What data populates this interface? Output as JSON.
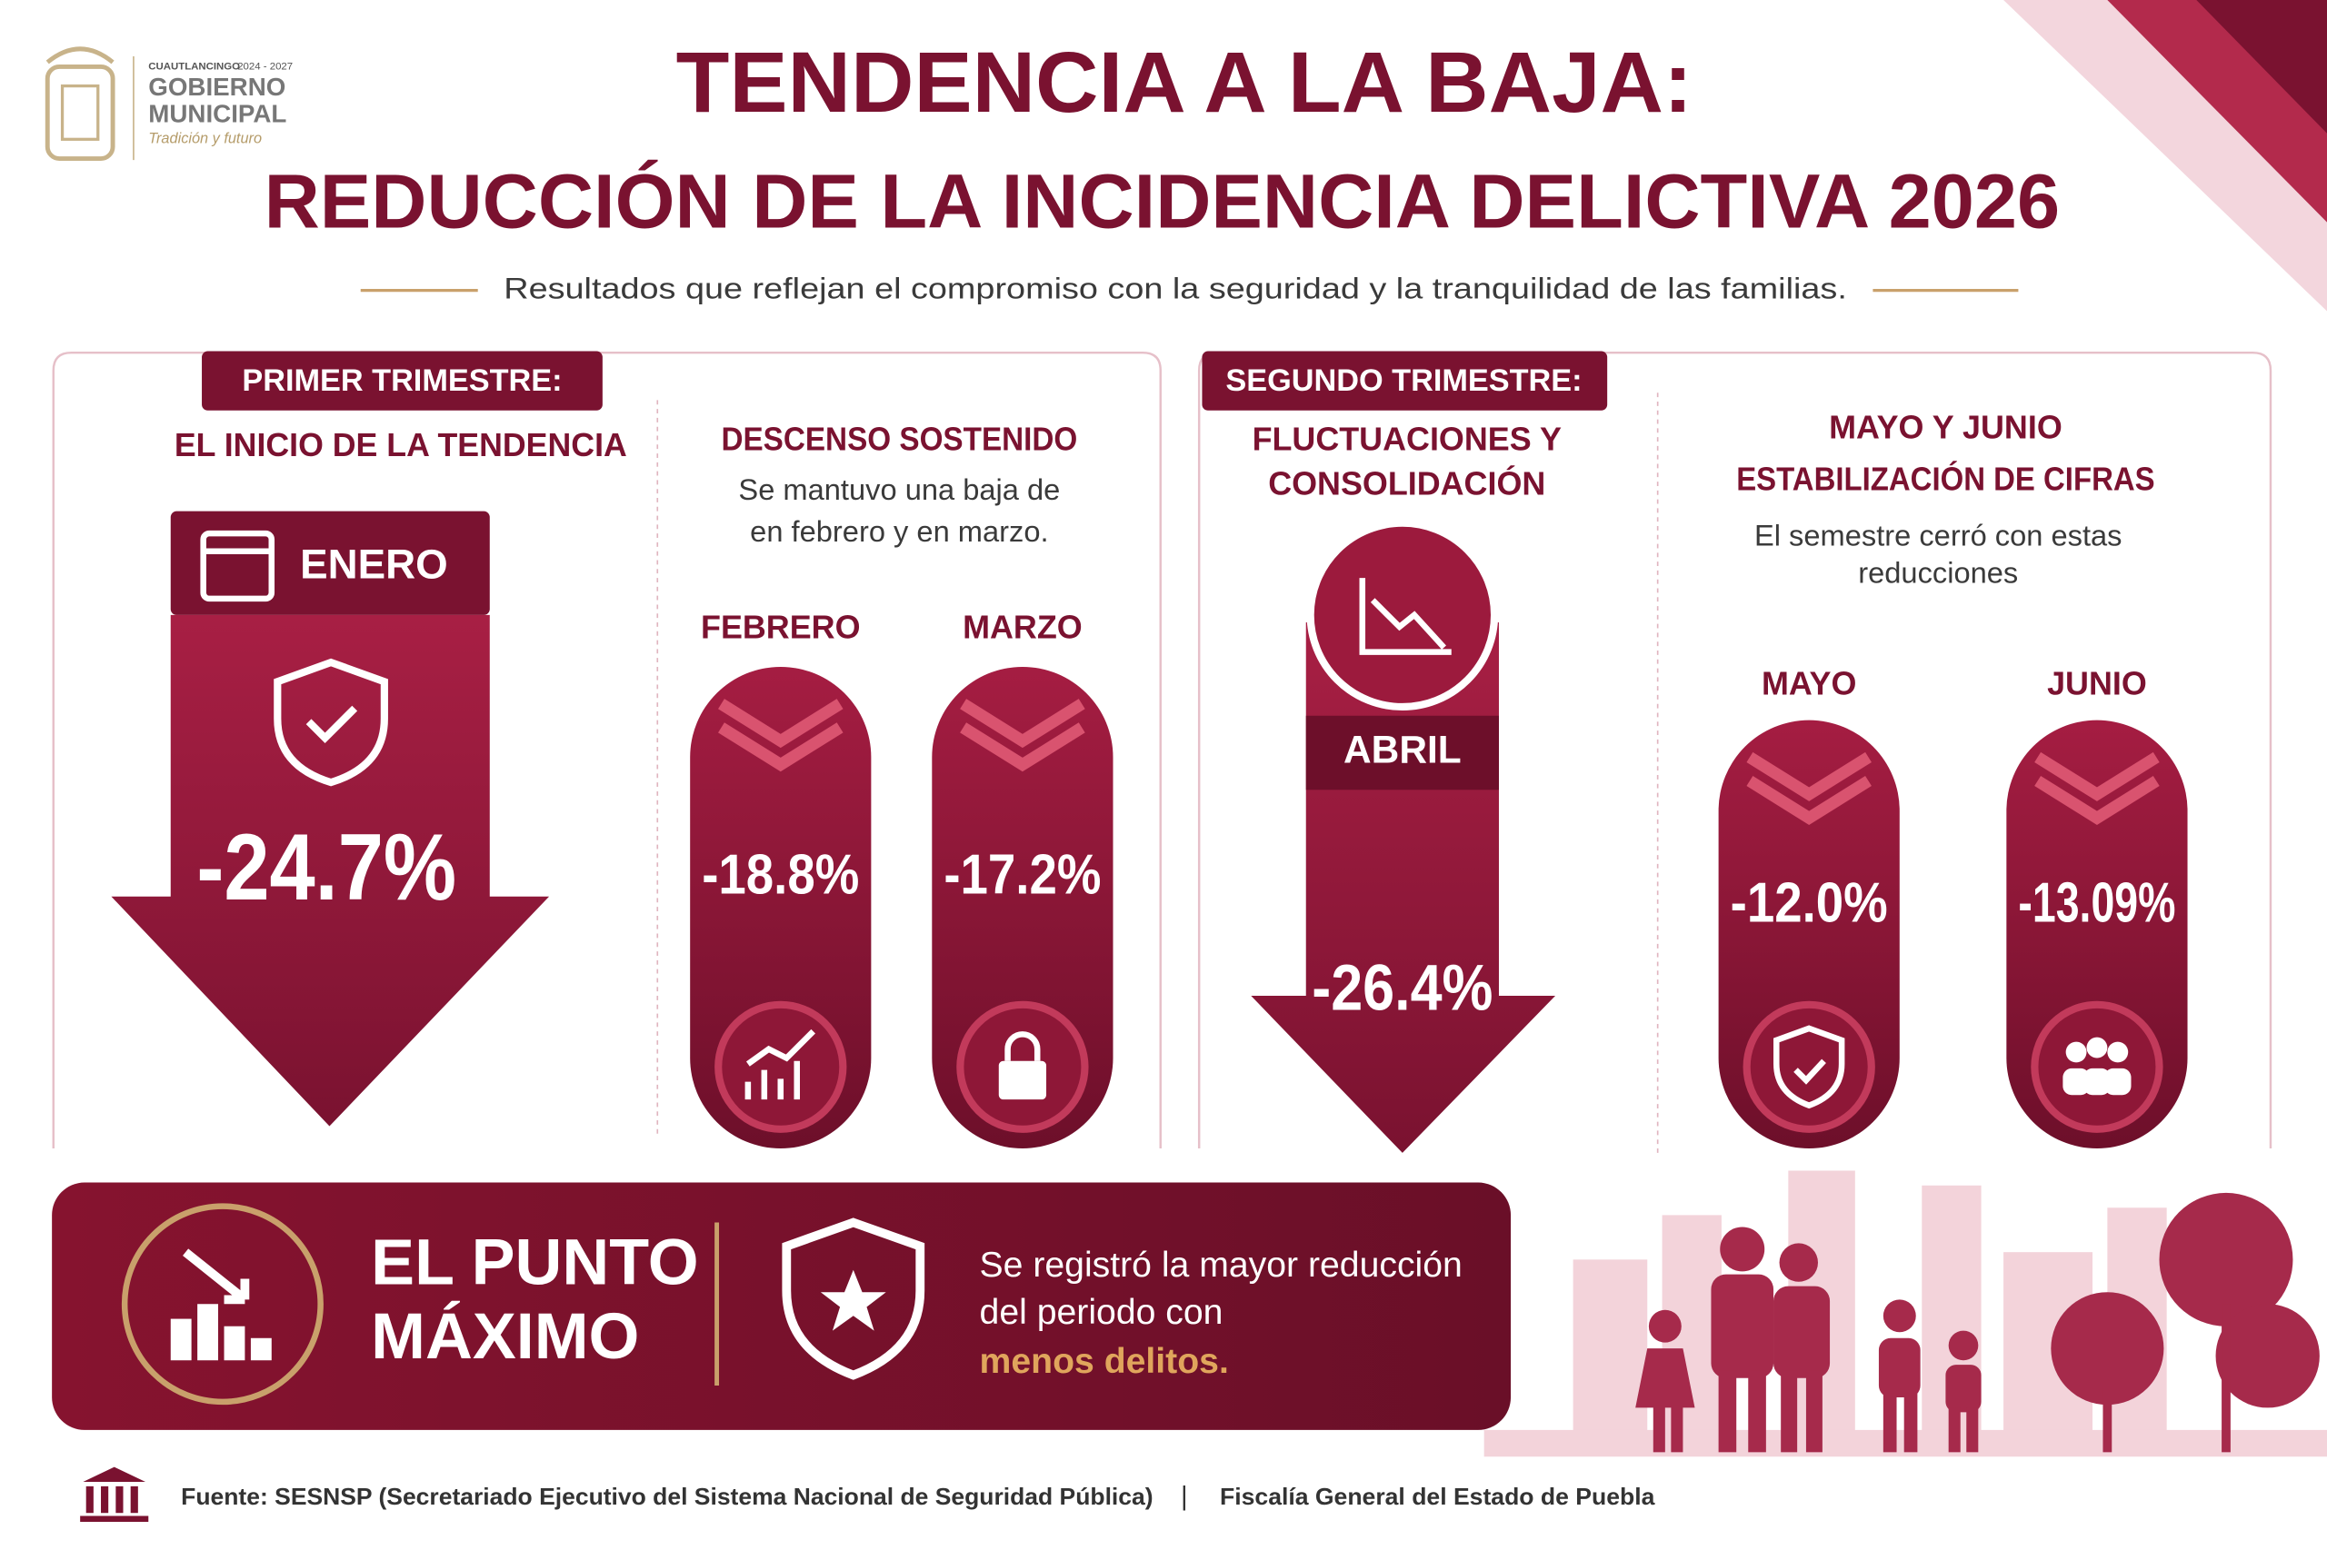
{
  "logo": {
    "municipality": "CUAUTLANCINGO",
    "years": "2024 - 2027",
    "name_line1": "GOBIERNO",
    "name_line2": "MUNICIPAL",
    "slogan": "Tradición y futuro"
  },
  "header": {
    "title": "TENDENCIA A LA BAJA:",
    "subtitle": "REDUCCIÓN DE LA INCIDENCIA DELICTIVA 2026",
    "tagline": "Resultados que reflejan el compromiso con la seguridad y la tranquilidad de las familias."
  },
  "first_quarter": {
    "badge": "PRIMER TRIMESTRE:",
    "heading": "EL INICIO DE LA TENDENCIA",
    "january": {
      "month": "ENERO",
      "value": "-24.7%"
    },
    "sustained": {
      "heading": "DESCENSO SOSTENIDO",
      "text_lines": [
        "Se mantuvo una baja de",
        "en febrero y en marzo."
      ],
      "months": [
        {
          "month": "FEBRERO",
          "value": "-18.8%"
        },
        {
          "month": "MARZO",
          "value": "-17.2%"
        }
      ]
    }
  },
  "second_quarter": {
    "badge": "SEGUNDO TRIMESTRE:",
    "heading_lines": [
      "FLUCTUACIONES Y",
      "CONSOLIDACIÓN"
    ],
    "april": {
      "month": "ABRIL",
      "value": "-26.4%"
    },
    "stabilization": {
      "heading_lines": [
        "MAYO Y JUNIO",
        "ESTABILIZACIÓN DE CIFRAS"
      ],
      "text_lines": [
        "El semestre cerró con estas",
        "reducciones"
      ],
      "months": [
        {
          "month": "MAYO",
          "value": "-12.0%"
        },
        {
          "month": "JUNIO",
          "value": "-13.09%"
        }
      ]
    }
  },
  "banner": {
    "title_lines": [
      "EL PUNTO",
      "MÁXIMO"
    ],
    "text_lines": [
      "Se registró la mayor reducción",
      "del periodo con"
    ],
    "highlight": "menos delitos."
  },
  "footer": {
    "source": "Fuente: SESNSP (Secretariado Ejecutivo del Sistema Nacional de Seguridad Pública)",
    "separator": "|",
    "second_source": "Fiscalía General del Estado de Puebla"
  }
}
